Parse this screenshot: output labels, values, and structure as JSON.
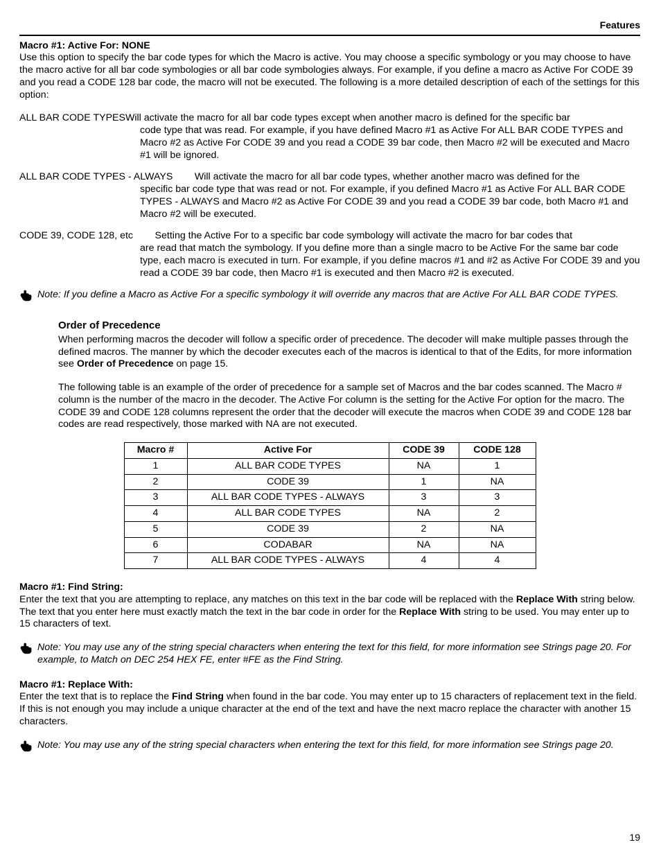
{
  "header": {
    "right": "Features"
  },
  "page_number": "19",
  "section1": {
    "title": "Macro #1: Active For: NONE",
    "body": "Use this option to specify the bar code types for which the Macro is active.  You may choose a specific symbology or you may choose to have the macro active for all bar code symbologies or all bar code symbologies always.  For example, if you define a macro as Active For CODE 39 and you read a CODE 128 bar code, the macro will not be executed.  The following is a more detailed description of each of the settings for this option:"
  },
  "defs": [
    {
      "term": "ALL BAR CODE TYPES",
      "lead": "Will activate the macro for all bar code types except when another macro is defined for the specific bar",
      "rest": "code type that was read.  For example, if you have defined Macro #1 as Active For ALL BAR CODE TYPES and Macro #2 as Active For CODE 39 and you read a CODE 39 bar code, then Macro #2 will be executed and Macro #1 will be ignored."
    },
    {
      "term": "ALL BAR CODE TYPES - ALWAYS",
      "lead": "Will activate the macro for all bar code types, whether another macro was defined for the",
      "rest": "specific bar code type that was read or not.  For example, if you defined Macro #1 as Active For ALL BAR CODE TYPES - ALWAYS and Macro #2 as Active For CODE 39 and you read a CODE 39 bar code, both Macro #1 and Macro #2 will be executed."
    },
    {
      "term": "CODE 39, CODE 128, etc",
      "lead": "Setting the Active For to a specific bar code symbology will activate the macro for bar codes that",
      "rest": "are read that match the symbology.  If you define more than a single macro to be Active For the same bar code type, each macro is executed in turn.  For example, if you define macros #1 and #2 as Active For CODE 39 and you read a CODE 39 bar code, then Macro #1 is executed and then Macro #2 is executed."
    }
  ],
  "note1": "Note: If you define a Macro as Active For a specific symbology it will override any macros that are Active For ALL BAR CODE TYPES.",
  "order": {
    "title": "Order of Precedence",
    "p1a": "When performing macros the decoder will follow a specific order of precedence.  The decoder will make multiple passes through the defined macros.  The manner by which the decoder executes each of the macros is identical to that of the Edits, for more information see ",
    "p1b": "Order of Precedence",
    "p1c": " on page 15.",
    "p2": "The following table is an example of the order of precedence for a sample set of Macros and the bar codes scanned.  The Macro # column is the number of the macro in the decoder.  The Active For column is the setting for the Active For option for the macro.  The CODE 39 and CODE 128 columns represent the order that the decoder will execute the macros when CODE 39 and CODE 128 bar codes are read respectively, those marked with NA are not executed."
  },
  "table": {
    "headers": [
      "Macro #",
      "Active For",
      "CODE 39",
      "CODE 128"
    ],
    "col_widths": [
      "70px",
      "270px",
      "80px",
      "90px"
    ],
    "rows": [
      [
        "1",
        "ALL BAR CODE TYPES",
        "NA",
        "1"
      ],
      [
        "2",
        "CODE 39",
        "1",
        "NA"
      ],
      [
        "3",
        "ALL BAR CODE TYPES - ALWAYS",
        "3",
        "3"
      ],
      [
        "4",
        "ALL BAR CODE TYPES",
        "NA",
        "2"
      ],
      [
        "5",
        "CODE 39",
        "2",
        "NA"
      ],
      [
        "6",
        "CODABAR",
        "NA",
        "NA"
      ],
      [
        "7",
        "ALL BAR CODE TYPES - ALWAYS",
        "4",
        "4"
      ]
    ]
  },
  "section2": {
    "title": "Macro #1: Find String:",
    "p_a": "Enter the text that you are attempting to replace, any matches on this text in the bar code will be replaced with the ",
    "p_b": "Replace With",
    "p_c": " string below.  The text that you enter here must exactly match the text in the bar code in order for the ",
    "p_d": "Replace With",
    "p_e": " string to be used.  You may enter up to 15 characters of text."
  },
  "note2": "Note: You may use any of the string special characters when entering the text for this field, for more information see Strings page 20.  For example, to Match on DEC 254 HEX FE, enter #FE as the Find String.",
  "section3": {
    "title": "Macro #1: Replace With:",
    "p_a": "Enter the text that is to replace the ",
    "p_b": "Find String",
    "p_c": " when found in the bar code.  You may enter up to 15 characters of replacement text in the field.  If this is not enough you may include a unique character at the end of the text and have the next macro replace the character with another 15 characters."
  },
  "note3": "Note: You may use any of the string special characters when entering the text for this field, for more information see Strings page 20."
}
